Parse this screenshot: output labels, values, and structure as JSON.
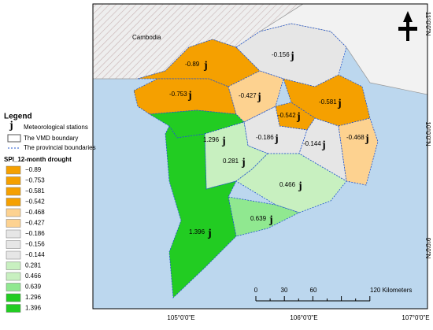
{
  "map": {
    "country_label": "Cambodia",
    "lat_labels": [
      "11°0'0\"N",
      "10°0'0\"N",
      "9°0'0\"N"
    ],
    "lon_labels": [
      "105°0'0\"E",
      "106°0'0\"E",
      "107°0'0\"E"
    ],
    "station_symbol": "j",
    "stations": [
      {
        "label": "-0.89",
        "color": "#f5a000"
      },
      {
        "label": "-0.156",
        "color": "#e6e6e6"
      },
      {
        "label": "-0.753",
        "color": "#f5a000"
      },
      {
        "label": "-0.427",
        "color": "#fdd290"
      },
      {
        "label": "-0.581",
        "color": "#f5a000"
      },
      {
        "label": "-0.542",
        "color": "#f5a000"
      },
      {
        "label": "-0.186",
        "color": "#e6e6e6"
      },
      {
        "label": "-0.144",
        "color": "#e6e6e6"
      },
      {
        "label": "-0.468",
        "color": "#fdd290"
      },
      {
        "label": "1.296",
        "color": "#22cc22"
      },
      {
        "label": "0.281",
        "color": "#c8f0c0"
      },
      {
        "label": "0.466",
        "color": "#c8f0c0"
      },
      {
        "label": "0.639",
        "color": "#90e890"
      },
      {
        "label": "1.396",
        "color": "#22cc22"
      }
    ],
    "scale_labels": [
      "0",
      "30",
      "60",
      "120 Kilometers"
    ]
  },
  "legend": {
    "title": "Legend",
    "symbol": "j",
    "items": [
      "Meteorological stations",
      "The VMD boundary",
      "The provincial boundaries"
    ],
    "classes_title": "SPI_12-month drought",
    "classes": [
      {
        "label": "−0.89",
        "color": "#f5a000"
      },
      {
        "label": "−0.753",
        "color": "#f5a000"
      },
      {
        "label": "−0.581",
        "color": "#f5a000"
      },
      {
        "label": "−0.542",
        "color": "#f5a000"
      },
      {
        "label": "−0.468",
        "color": "#fdd290"
      },
      {
        "label": "−0.427",
        "color": "#fdd290"
      },
      {
        "label": "−0.186",
        "color": "#e6e6e6"
      },
      {
        "label": "−0.156",
        "color": "#e6e6e6"
      },
      {
        "label": "−0.144",
        "color": "#e6e6e6"
      },
      {
        "label": "0.281",
        "color": "#c8f0c0"
      },
      {
        "label": "0.466",
        "color": "#c8f0c0"
      },
      {
        "label": "0.639",
        "color": "#90e890"
      },
      {
        "label": "1.296",
        "color": "#22cc22"
      },
      {
        "label": "1.396",
        "color": "#22cc22"
      }
    ]
  }
}
